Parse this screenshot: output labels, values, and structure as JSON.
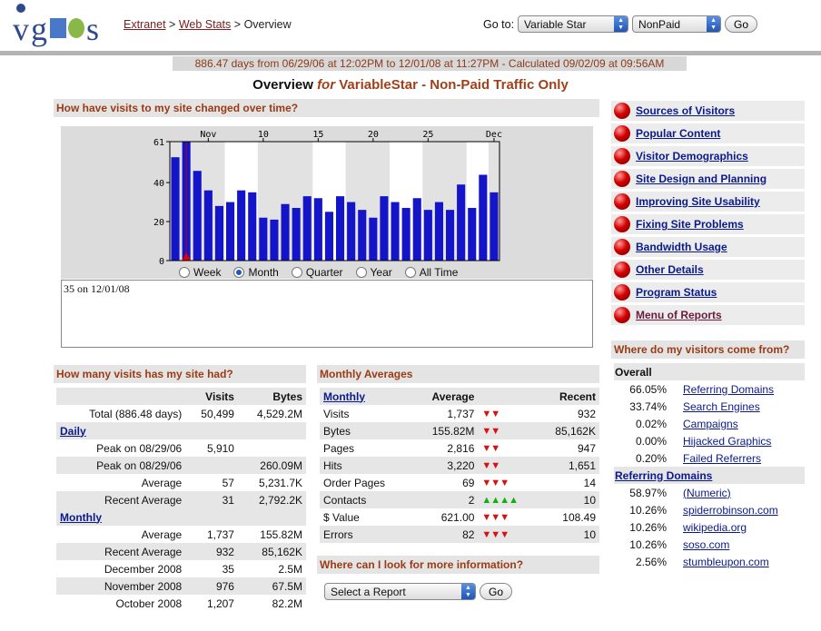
{
  "logo": {
    "text": "vgods"
  },
  "breadcrumb": {
    "link1": "Extranet",
    "sep1": ">",
    "link2": "Web Stats",
    "sep2": ">",
    "current": "Overview"
  },
  "goto": {
    "label": "Go to:",
    "site": "Variable Star",
    "filter": "NonPaid",
    "button": "Go"
  },
  "range_text": "886.47 days from 06/29/06 at 12:02PM to 12/01/08 at 11:27PM - Calculated 09/02/09 at 09:56AM",
  "title": {
    "main": "Overview",
    "for": "for",
    "site": "VariableStar - Non-Paid Traffic Only"
  },
  "sections": {
    "visits_changed": "How have visits to my site changed over time?",
    "how_many": "How many visits has my site had?",
    "monthly_avg": "Monthly Averages",
    "more_info": "Where can I look for more information?",
    "come_from": "Where do my visitors come from?"
  },
  "chart_data": {
    "type": "bar",
    "x_tick_labels": [
      "Nov",
      "10",
      "15",
      "20",
      "25",
      "Dec"
    ],
    "y_tick_labels": [
      "0",
      "20",
      "40",
      "61"
    ],
    "ylim": [
      0,
      61
    ],
    "values": [
      53,
      61,
      46,
      36,
      28,
      30,
      36,
      35,
      22,
      21,
      29,
      27,
      33,
      32,
      25,
      33,
      30,
      26,
      22,
      33,
      30,
      27,
      32,
      26,
      30,
      26,
      39,
      27,
      44,
      35
    ],
    "series_color": "#1414c8",
    "marker": "red triangle at second bar"
  },
  "radios": [
    {
      "label": "Week",
      "checked": false
    },
    {
      "label": "Month",
      "checked": true
    },
    {
      "label": "Quarter",
      "checked": false
    },
    {
      "label": "Year",
      "checked": false
    },
    {
      "label": "All Time",
      "checked": false
    }
  ],
  "detail_text": "35 on 12/01/08",
  "menu": [
    "Sources of Visitors",
    "Popular Content",
    "Visitor Demographics",
    "Site Design and Planning",
    "Improving Site Usability",
    "Fixing Site Problems",
    "Bandwidth Usage",
    "Other Details",
    "Program Status",
    "Menu of Reports"
  ],
  "visits_table": {
    "headers": [
      "",
      "Visits",
      "Bytes"
    ],
    "total": {
      "label": "Total (886.48 days)",
      "visits": "50,499",
      "bytes": "4,529.2M"
    },
    "daily_label": "Daily",
    "daily": [
      {
        "label": "Peak on 08/29/06",
        "visits": "5,910",
        "bytes": ""
      },
      {
        "label": "Peak on 08/29/06",
        "visits": "",
        "bytes": "260.09M"
      },
      {
        "label": "Average",
        "visits": "57",
        "bytes": "5,231.7K"
      },
      {
        "label": "Recent Average",
        "visits": "31",
        "bytes": "2,792.2K"
      }
    ],
    "monthly_label": "Monthly",
    "monthly": [
      {
        "label": "Average",
        "visits": "1,737",
        "bytes": "155.82M"
      },
      {
        "label": "Recent Average",
        "visits": "932",
        "bytes": "85,162K"
      },
      {
        "label": "December 2008",
        "visits": "35",
        "bytes": "2.5M"
      },
      {
        "label": "November 2008",
        "visits": "976",
        "bytes": "67.5M"
      },
      {
        "label": "October 2008",
        "visits": "1,207",
        "bytes": "82.2M"
      }
    ]
  },
  "monthly_table": {
    "headers": [
      "Monthly",
      "Average",
      "",
      "Recent"
    ],
    "rows": [
      {
        "label": "Visits",
        "avg": "1,737",
        "trend": "down",
        "count": 2,
        "recent": "932"
      },
      {
        "label": "Bytes",
        "avg": "155.82M",
        "trend": "down",
        "count": 2,
        "recent": "85,162K"
      },
      {
        "label": "Pages",
        "avg": "2,816",
        "trend": "down",
        "count": 2,
        "recent": "947"
      },
      {
        "label": "Hits",
        "avg": "3,220",
        "trend": "down",
        "count": 2,
        "recent": "1,651"
      },
      {
        "label": "Order Pages",
        "avg": "69",
        "trend": "down",
        "count": 3,
        "recent": "14"
      },
      {
        "label": "Contacts",
        "avg": "2",
        "trend": "up",
        "count": 4,
        "recent": "10"
      },
      {
        "label": "$ Value",
        "avg": "621.00",
        "trend": "down",
        "count": 3,
        "recent": "108.49"
      },
      {
        "label": "Errors",
        "avg": "82",
        "trend": "down",
        "count": 3,
        "recent": "10"
      }
    ]
  },
  "report": {
    "select": "Select a Report",
    "button": "Go"
  },
  "where_table": {
    "overall_label": "Overall",
    "overall": [
      {
        "pct": "66.05%",
        "name": "Referring Domains"
      },
      {
        "pct": "33.74%",
        "name": "Search Engines"
      },
      {
        "pct": "0.02%",
        "name": "Campaigns"
      },
      {
        "pct": "0.00%",
        "name": "Hijacked Graphics"
      },
      {
        "pct": "0.20%",
        "name": "Failed Referrers"
      }
    ],
    "ref_label": "Referring Domains",
    "refs": [
      {
        "pct": "58.97%",
        "name": "(Numeric)"
      },
      {
        "pct": "10.26%",
        "name": "spiderrobinson.com"
      },
      {
        "pct": "10.26%",
        "name": "wikipedia.org"
      },
      {
        "pct": "10.26%",
        "name": "soso.com"
      },
      {
        "pct": "2.56%",
        "name": "stumbleupon.com"
      }
    ]
  }
}
